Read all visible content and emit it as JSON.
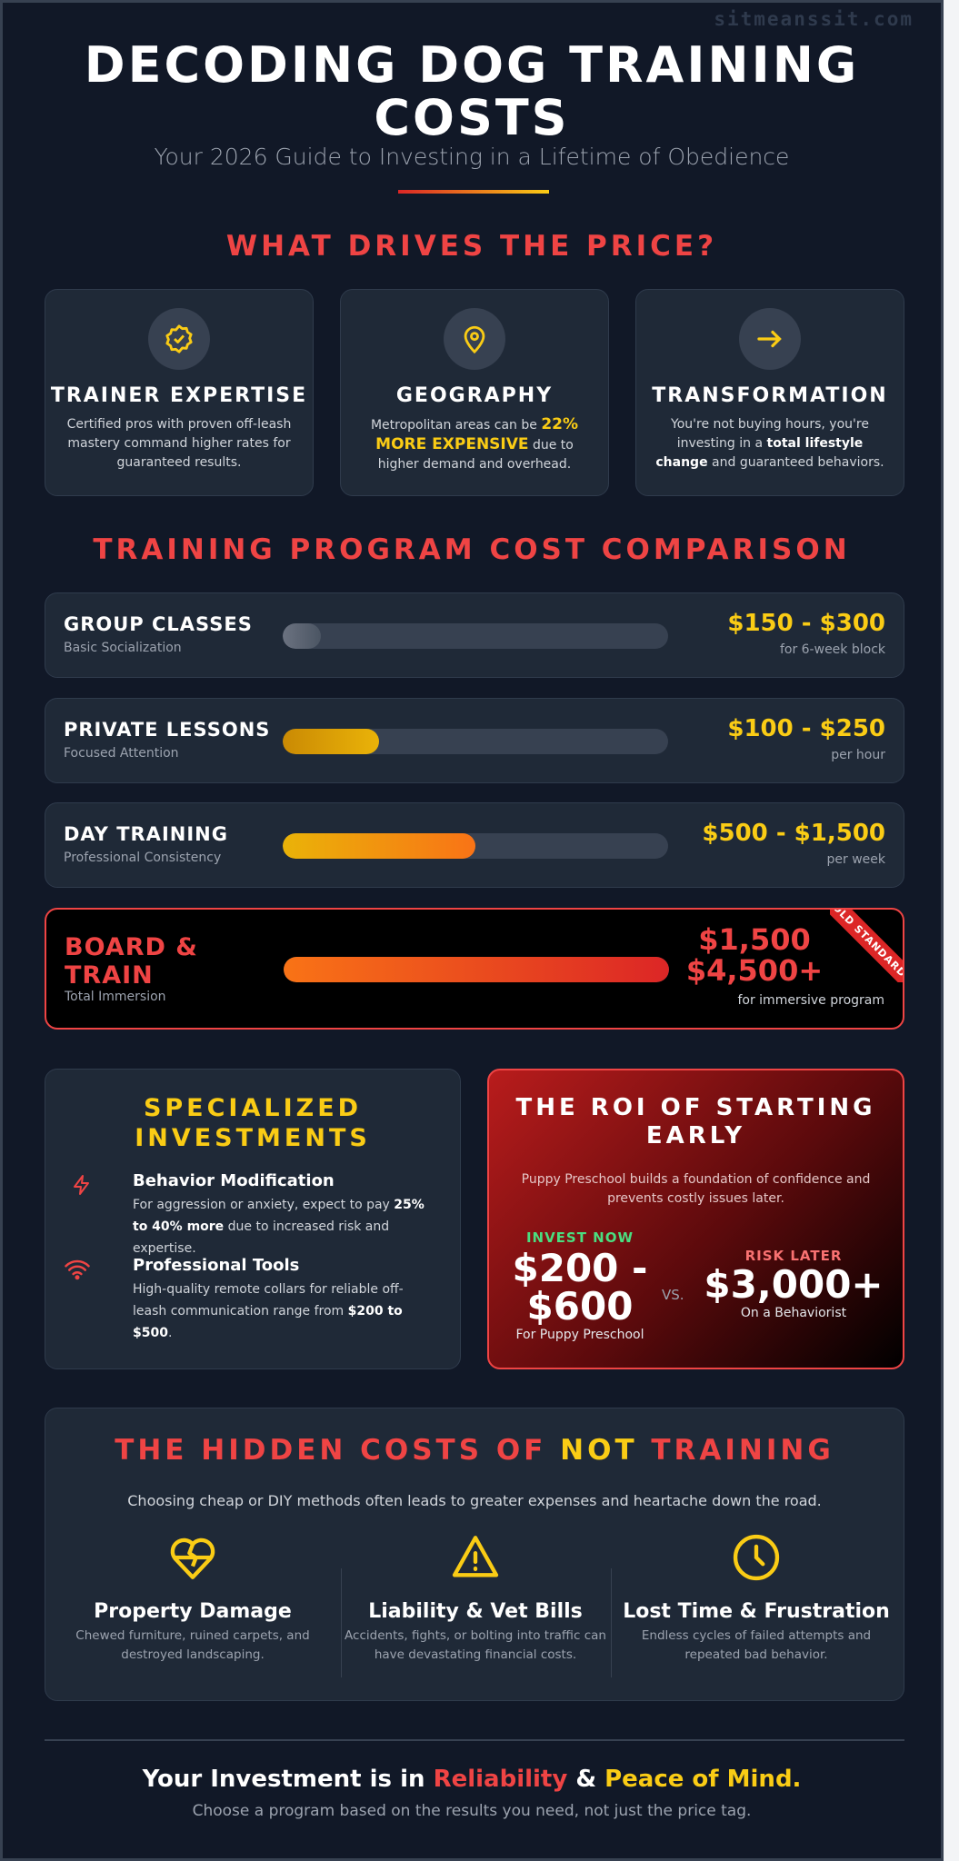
{
  "watermark": "sitmeanssit.com",
  "header": {
    "title": "DECODING DOG TRAINING COSTS",
    "subtitle": "Your 2026 Guide to Investing in a Lifetime of Obedience"
  },
  "drivers": {
    "title": "WHAT DRIVES THE PRICE?",
    "cards": [
      {
        "icon": "badge-check-icon",
        "title": "TRAINER EXPERTISE",
        "text": "Certified pros with proven off-leash mastery command higher rates for guaranteed results."
      },
      {
        "icon": "map-pin-icon",
        "title": "GEOGRAPHY",
        "pre": "Metropolitan areas can be ",
        "highlight": "22% MORE EXPENSIVE",
        "post": " due to higher demand and overhead."
      },
      {
        "icon": "arrow-right-icon",
        "title": "TRANSFORMATION",
        "pre": "You're not buying hours, you're investing in a ",
        "highlight": "total lifestyle change",
        "post": " and guaranteed behaviors."
      }
    ]
  },
  "comparison": {
    "title": "TRAINING PROGRAM COST COMPARISON",
    "rows": [
      {
        "name": "GROUP CLASSES",
        "sub": "Basic Socialization",
        "price": "$150 - $300",
        "unit": "for 6-week block",
        "fill_pct": 10
      },
      {
        "name": "PRIVATE LESSONS",
        "sub": "Focused Attention",
        "price": "$100 - $250",
        "unit": "per hour",
        "fill_pct": 25
      },
      {
        "name": "DAY TRAINING",
        "sub": "Professional Consistency",
        "price": "$500 - $1,500",
        "unit": "per week",
        "fill_pct": 50
      },
      {
        "name": "BOARD & TRAIN",
        "sub": "Total Immersion",
        "price": "$1,500 $4,500+",
        "unit": "for immersive program",
        "fill_pct": 100,
        "ribbon": "GOLD STANDARD"
      }
    ]
  },
  "specialized": {
    "title": "SPECIALIZED INVESTMENTS",
    "items": [
      {
        "icon": "lightning-icon",
        "title": "Behavior Modification",
        "pre": "For aggression or anxiety, expect to pay ",
        "bold": "25% to 40% more",
        "post": " due to increased risk and expertise."
      },
      {
        "icon": "wifi-icon",
        "title": "Professional Tools",
        "pre": "High-quality remote collars for reliable off-leash communication range from ",
        "bold": "$200 to $500",
        "post": "."
      }
    ]
  },
  "roi": {
    "title": "THE ROI OF STARTING EARLY",
    "text": "Puppy Preschool builds a foundation of confidence and prevents costly issues later.",
    "now_label": "INVEST NOW",
    "now_price": "$200 - $600",
    "now_note": "For Puppy Preschool",
    "vs": "VS.",
    "later_label": "RISK LATER",
    "later_price": "$3,000+",
    "later_note": "On a Behaviorist"
  },
  "hidden": {
    "title_a": "THE HIDDEN COSTS OF ",
    "title_b": "NOT",
    "title_c": " TRAINING",
    "text": "Choosing cheap or DIY methods often leads to greater expenses and heartache down the road.",
    "items": [
      {
        "icon": "broken-heart-icon",
        "title": "Property Damage",
        "text": "Chewed furniture, ruined carpets, and destroyed landscaping."
      },
      {
        "icon": "warning-icon",
        "title": "Liability & Vet Bills",
        "text": "Accidents, fights, or bolting into traffic can have devastating financial costs."
      },
      {
        "icon": "clock-icon",
        "title": "Lost Time & Frustration",
        "text": "Endless cycles of failed attempts and repeated bad behavior."
      }
    ]
  },
  "footer": {
    "a": "Your Investment is in ",
    "b": "Reliability",
    "c": " & ",
    "d": "Peace of Mind.",
    "sub": "Choose a program based on the results you need, not just the price tag."
  },
  "colors": {
    "bg": "#111827",
    "card": "#1f2937",
    "red": "#ef4444",
    "yellow": "#facc15",
    "green": "#4ade80"
  }
}
